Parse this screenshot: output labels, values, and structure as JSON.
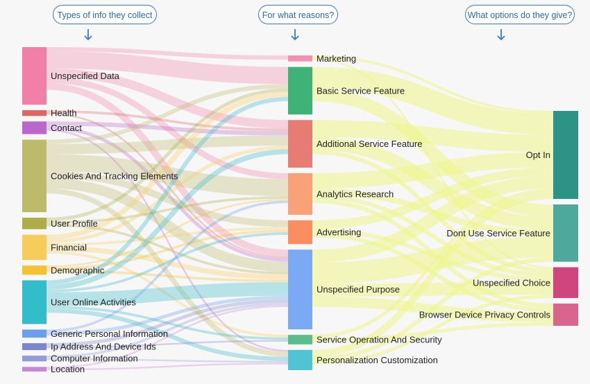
{
  "headers": [
    {
      "label": "Types of info they collect"
    },
    {
      "label": "For what reasons?"
    },
    {
      "label": "What options do they give?"
    }
  ],
  "colors": {
    "pill_border": "#3b78c9",
    "pill_text": "#2f66b5",
    "background": "#f7f7f7"
  },
  "nodes": {
    "sources": [
      {
        "id": "unspecified-data",
        "label": "Unspecified Data",
        "color": "#f27fa8"
      },
      {
        "id": "health",
        "label": "Health",
        "color": "#e06666"
      },
      {
        "id": "contact",
        "label": "Contact",
        "color": "#bb66cc"
      },
      {
        "id": "cookies",
        "label": "Cookies And Tracking Elements",
        "color": "#bdbb6b"
      },
      {
        "id": "user-profile",
        "label": "User Profile",
        "color": "#aeae48"
      },
      {
        "id": "financial",
        "label": "Financial",
        "color": "#f6cc5a"
      },
      {
        "id": "demographic",
        "label": "Demographic",
        "color": "#f4c232"
      },
      {
        "id": "user-online",
        "label": "User Online Activities",
        "color": "#33bcc9"
      },
      {
        "id": "generic-personal",
        "label": "Generic Personal Information",
        "color": "#6b9df0"
      },
      {
        "id": "ip-address",
        "label": "Ip Address And Device Ids",
        "color": "#7b86cc"
      },
      {
        "id": "computer-info",
        "label": "Computer Information",
        "color": "#939cd6"
      },
      {
        "id": "location",
        "label": "Location",
        "color": "#c787d6"
      }
    ],
    "purposes": [
      {
        "id": "marketing",
        "label": "Marketing",
        "color": "#f48fb1"
      },
      {
        "id": "basic-service",
        "label": "Basic Service Feature",
        "color": "#3fb277"
      },
      {
        "id": "additional-service",
        "label": "Additional Service Feature",
        "color": "#e67c73"
      },
      {
        "id": "analytics",
        "label": "Analytics Research",
        "color": "#f9a27a"
      },
      {
        "id": "advertising",
        "label": "Advertising",
        "color": "#fc8d62"
      },
      {
        "id": "unspecified-purpose",
        "label": "Unspecified Purpose",
        "color": "#7ba9f4"
      },
      {
        "id": "service-operation",
        "label": "Service Operation And Security",
        "color": "#5bbd8e"
      },
      {
        "id": "personalization",
        "label": "Personalization Customization",
        "color": "#50c4d4"
      }
    ],
    "options": [
      {
        "id": "opt-in",
        "label": "Opt In",
        "color": "#2e9387"
      },
      {
        "id": "dont-use",
        "label": "Dont Use Service Feature",
        "color": "#4fa89c"
      },
      {
        "id": "unspecified-choice",
        "label": "Unspecified Choice",
        "color": "#d0457d"
      },
      {
        "id": "browser-controls",
        "label": "Browser Device Privacy Controls",
        "color": "#d9648d"
      }
    ]
  },
  "links": [
    {
      "source": "unspecified-data",
      "target": "marketing",
      "value": 5
    },
    {
      "source": "unspecified-data",
      "target": "basic-service",
      "value": 20
    },
    {
      "source": "unspecified-data",
      "target": "additional-service",
      "value": 10
    },
    {
      "source": "unspecified-data",
      "target": "unspecified-purpose",
      "value": 8
    },
    {
      "source": "unspecified-data",
      "target": "analytics",
      "value": 7
    },
    {
      "source": "health",
      "target": "additional-service",
      "value": 3
    },
    {
      "source": "health",
      "target": "unspecified-purpose",
      "value": 2
    },
    {
      "source": "contact",
      "target": "additional-service",
      "value": 5
    },
    {
      "source": "contact",
      "target": "unspecified-purpose",
      "value": 4
    },
    {
      "source": "contact",
      "target": "personalization",
      "value": 2
    },
    {
      "source": "cookies",
      "target": "additional-service",
      "value": 12
    },
    {
      "source": "cookies",
      "target": "analytics",
      "value": 20
    },
    {
      "source": "cookies",
      "target": "advertising",
      "value": 8
    },
    {
      "source": "cookies",
      "target": "unspecified-purpose",
      "value": 12
    },
    {
      "source": "cookies",
      "target": "personalization",
      "value": 6
    },
    {
      "source": "cookies",
      "target": "basic-service",
      "value": 5
    },
    {
      "source": "user-profile",
      "target": "basic-service",
      "value": 4
    },
    {
      "source": "user-profile",
      "target": "analytics",
      "value": 3
    },
    {
      "source": "user-profile",
      "target": "unspecified-purpose",
      "value": 3
    },
    {
      "source": "financial",
      "target": "basic-service",
      "value": 6
    },
    {
      "source": "financial",
      "target": "additional-service",
      "value": 4
    },
    {
      "source": "financial",
      "target": "unspecified-purpose",
      "value": 6
    },
    {
      "source": "financial",
      "target": "service-operation",
      "value": 3
    },
    {
      "source": "financial",
      "target": "advertising",
      "value": 3
    },
    {
      "source": "demographic",
      "target": "advertising",
      "value": 3
    },
    {
      "source": "demographic",
      "target": "unspecified-purpose",
      "value": 3
    },
    {
      "source": "demographic",
      "target": "analytics",
      "value": 2
    },
    {
      "source": "user-online",
      "target": "basic-service",
      "value": 5
    },
    {
      "source": "user-online",
      "target": "additional-service",
      "value": 6
    },
    {
      "source": "user-online",
      "target": "unspecified-purpose",
      "value": 16
    },
    {
      "source": "user-online",
      "target": "service-operation",
      "value": 3
    },
    {
      "source": "user-online",
      "target": "personalization",
      "value": 5
    },
    {
      "source": "user-online",
      "target": "advertising",
      "value": 3
    },
    {
      "source": "generic-personal",
      "target": "unspecified-purpose",
      "value": 4
    },
    {
      "source": "generic-personal",
      "target": "analytics",
      "value": 3
    },
    {
      "source": "ip-address",
      "target": "unspecified-purpose",
      "value": 4
    },
    {
      "source": "ip-address",
      "target": "service-operation",
      "value": 2
    },
    {
      "source": "computer-info",
      "target": "unspecified-purpose",
      "value": 3
    },
    {
      "source": "computer-info",
      "target": "personalization",
      "value": 2
    },
    {
      "source": "location",
      "target": "unspecified-purpose",
      "value": 2
    },
    {
      "source": "location",
      "target": "personalization",
      "value": 2
    },
    {
      "source": "marketing",
      "target": "opt-in",
      "value": 3
    },
    {
      "source": "marketing",
      "target": "unspecified-choice",
      "value": 2
    },
    {
      "source": "basic-service",
      "target": "opt-in",
      "value": 25
    },
    {
      "source": "basic-service",
      "target": "dont-use",
      "value": 15
    },
    {
      "source": "additional-service",
      "target": "opt-in",
      "value": 20
    },
    {
      "source": "additional-service",
      "target": "dont-use",
      "value": 15
    },
    {
      "source": "additional-service",
      "target": "unspecified-choice",
      "value": 5
    },
    {
      "source": "analytics",
      "target": "opt-in",
      "value": 18
    },
    {
      "source": "analytics",
      "target": "dont-use",
      "value": 7
    },
    {
      "source": "analytics",
      "target": "browser-controls",
      "value": 5
    },
    {
      "source": "analytics",
      "target": "unspecified-choice",
      "value": 5
    },
    {
      "source": "advertising",
      "target": "opt-in",
      "value": 10
    },
    {
      "source": "advertising",
      "target": "browser-controls",
      "value": 5
    },
    {
      "source": "advertising",
      "target": "unspecified-choice",
      "value": 5
    },
    {
      "source": "unspecified-purpose",
      "target": "opt-in",
      "value": 15
    },
    {
      "source": "unspecified-purpose",
      "target": "dont-use",
      "value": 25
    },
    {
      "source": "unspecified-purpose",
      "target": "unspecified-choice",
      "value": 15
    },
    {
      "source": "unspecified-purpose",
      "target": "browser-controls",
      "value": 12
    },
    {
      "source": "service-operation",
      "target": "opt-in",
      "value": 4
    },
    {
      "source": "service-operation",
      "target": "browser-controls",
      "value": 4
    },
    {
      "source": "personalization",
      "target": "opt-in",
      "value": 8
    },
    {
      "source": "personalization",
      "target": "dont-use",
      "value": 5
    },
    {
      "source": "personalization",
      "target": "unspecified-choice",
      "value": 4
    }
  ]
}
